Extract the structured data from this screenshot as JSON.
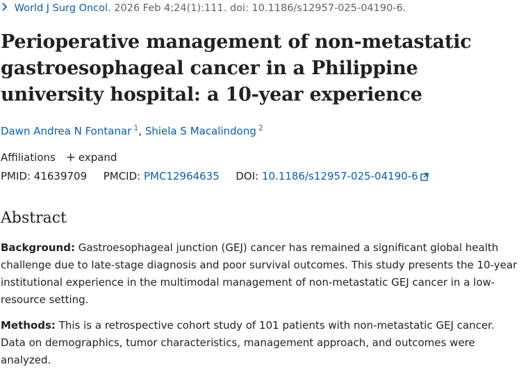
{
  "citation": {
    "journal": "World J Surg Oncol.",
    "details": "2026 Feb 4;24(1):111. doi: 10.1186/s12957-025-04190-6."
  },
  "title": "Perioperative management of non-metastatic gastroesophageal cancer in a Philippine university hospital: a 10-year experience",
  "authors": [
    {
      "name": "Dawn Andrea N Fontanar",
      "affil": "1"
    },
    {
      "name": "Shiela S Macalindong",
      "affil": "2"
    }
  ],
  "affiliations": {
    "label": "Affiliations",
    "expand_label": "expand"
  },
  "ids": {
    "pmid_label": "PMID:",
    "pmid": "41639709",
    "pmcid_label": "PMCID:",
    "pmcid": "PMC12964635",
    "doi_label": "DOI:",
    "doi": "10.1186/s12957-025-04190-6"
  },
  "abstract": {
    "heading": "Abstract",
    "background_label": "Background:",
    "background_text": "Gastroesophageal junction (GEJ) cancer has remained a significant global health challenge due to late-stage diagnosis and poor survival outcomes. This study presents the 10-year institutional experience in the multimodal management of non-metastatic GEJ cancer in a low-resource setting.",
    "methods_label": "Methods:",
    "methods_text": "This is a retrospective cohort study of 101 patients with non-metastatic GEJ cancer. Data on demographics, tumor characteristics, management approach, and outcomes were analyzed."
  },
  "colors": {
    "link": "#0b5ea8",
    "text": "#212121",
    "muted": "#5b616b"
  }
}
